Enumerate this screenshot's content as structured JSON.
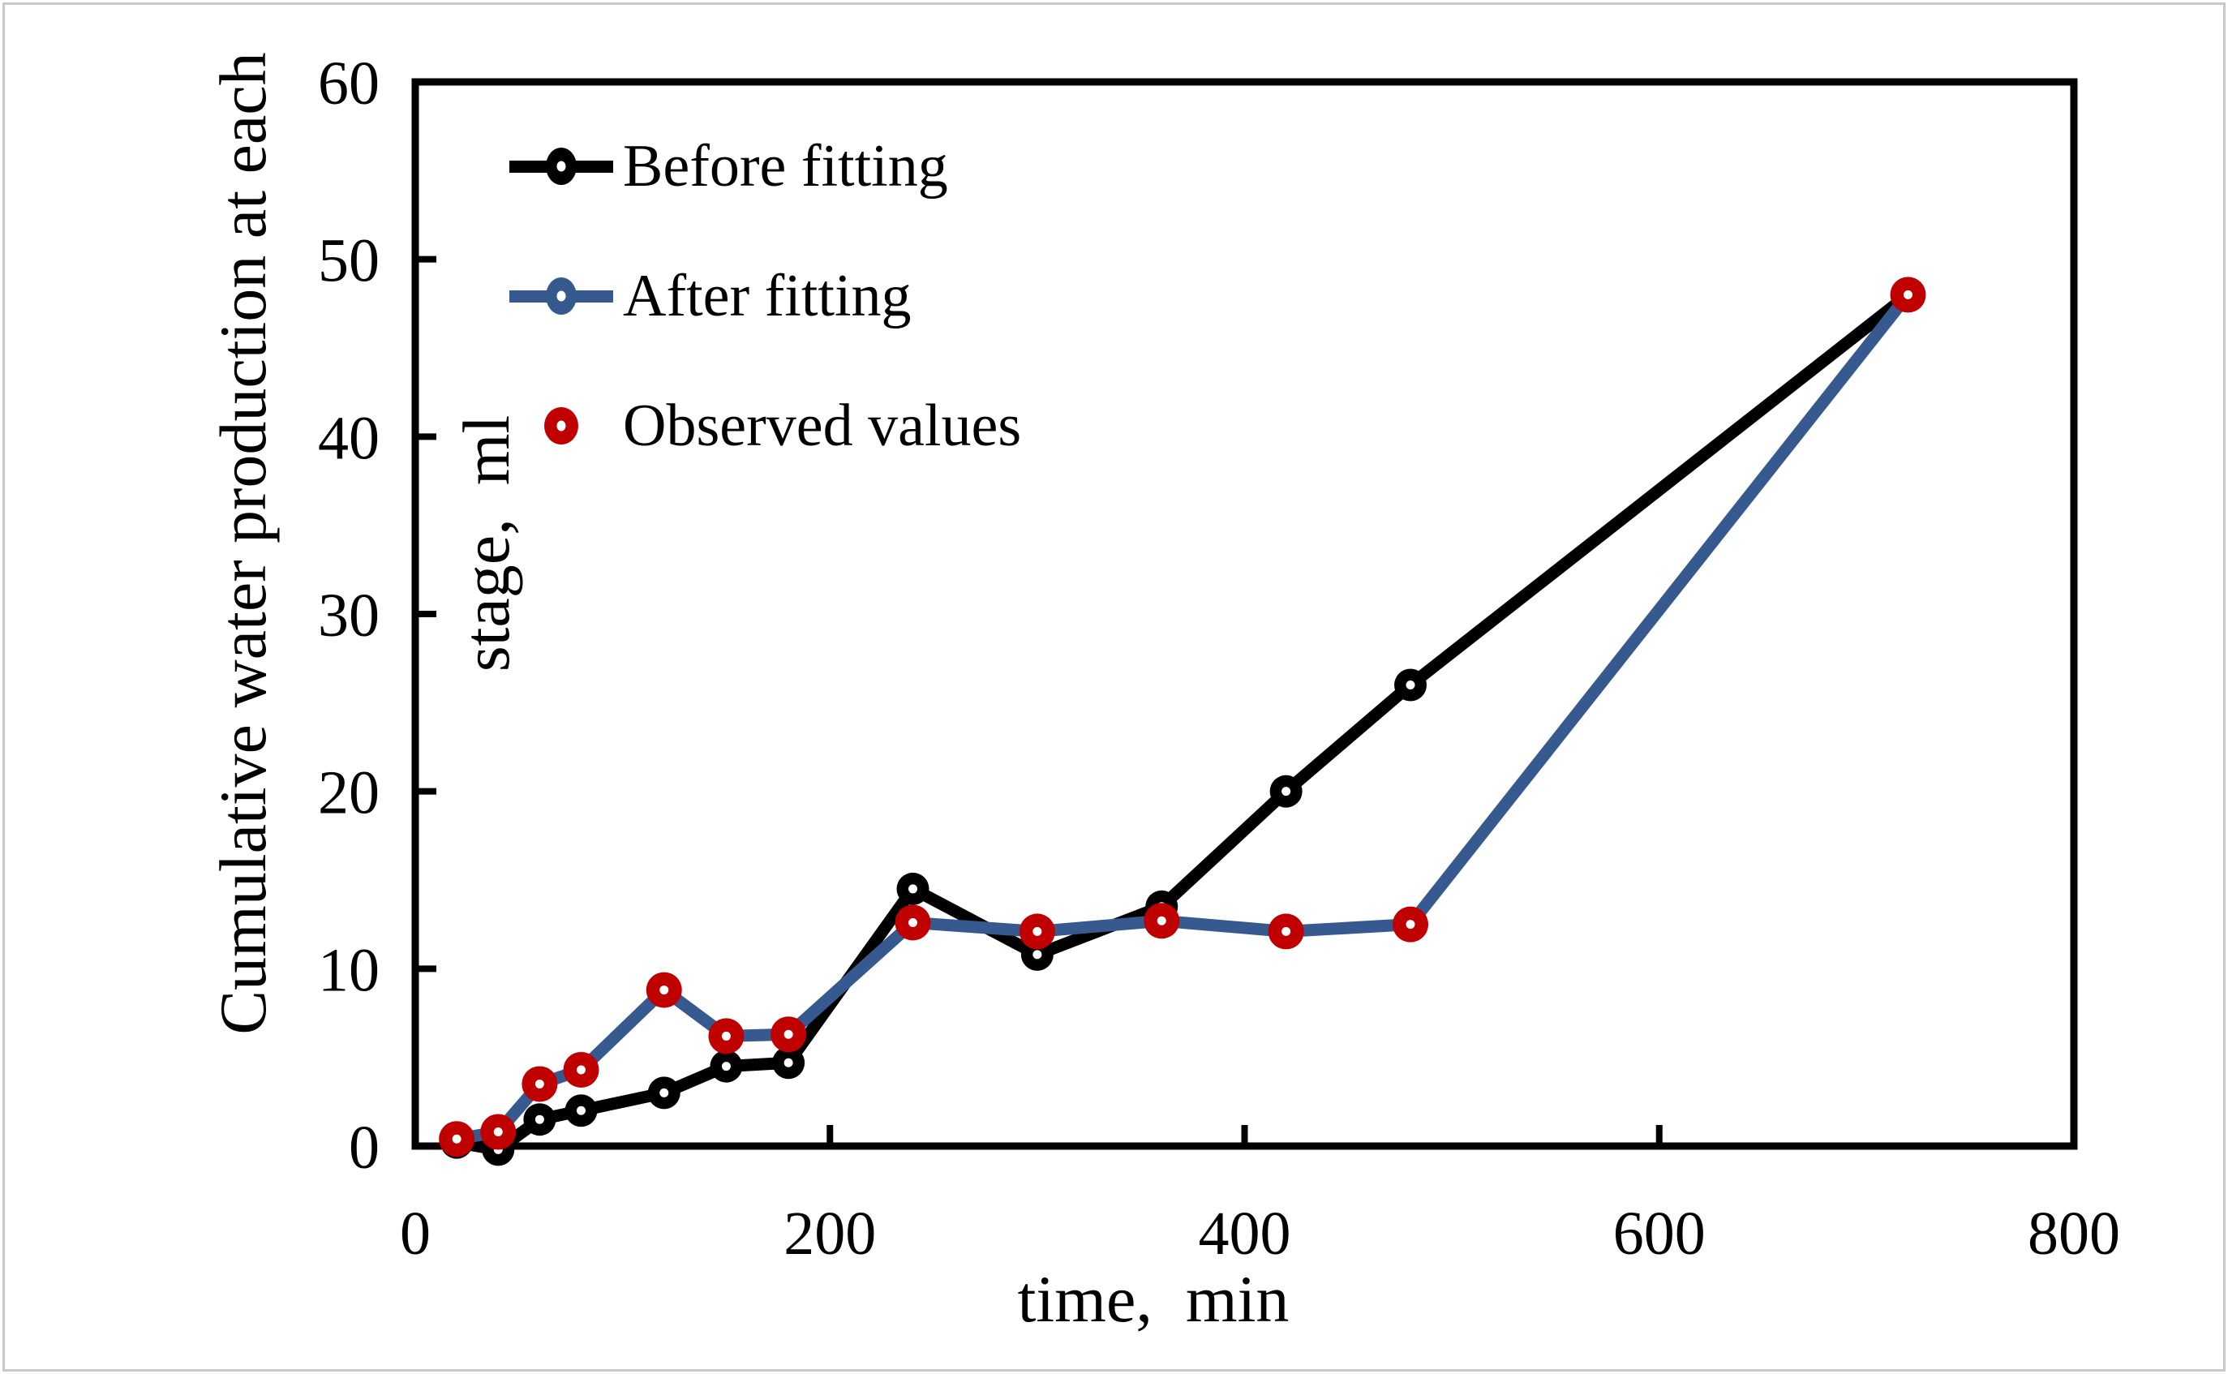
{
  "figure": {
    "background": "#ffffff",
    "outer_border_color": "#c9c9c9"
  },
  "chart_data": {
    "type": "line",
    "title": "",
    "xlabel": "time,  min",
    "ylabel": "Cumulative water production at each stage,  ml",
    "ylabel_lines": [
      "Cumulative water production at each",
      "stage,  ml"
    ],
    "xlim": [
      0,
      800
    ],
    "ylim": [
      0,
      60
    ],
    "x_ticks": [
      0,
      200,
      400,
      600,
      800
    ],
    "y_ticks": [
      0,
      10,
      20,
      30,
      40,
      50,
      60
    ],
    "grid": false,
    "legend_position": "upper-left-inside",
    "x": [
      20,
      40,
      60,
      80,
      120,
      150,
      180,
      240,
      300,
      360,
      420,
      480,
      720
    ],
    "series": [
      {
        "name": "Before fitting",
        "color": "#000000",
        "has_line": true,
        "marker": "circle-with-white-center",
        "values": [
          0.2,
          -0.2,
          1.5,
          2.0,
          3.0,
          4.5,
          4.7,
          14.5,
          10.8,
          13.5,
          20.0,
          26.0,
          48.0
        ]
      },
      {
        "name": "After fitting",
        "color": "#36598F",
        "has_line": true,
        "marker": "circle-with-white-center",
        "values": [
          0.4,
          0.8,
          3.5,
          4.3,
          8.8,
          6.2,
          6.3,
          12.6,
          12.1,
          12.7,
          12.1,
          12.5,
          48.0
        ]
      },
      {
        "name": "Observed values",
        "color": "#C00000",
        "has_line": false,
        "marker": "circle-with-white-center",
        "values": [
          0.4,
          0.8,
          3.5,
          4.3,
          8.8,
          6.2,
          6.3,
          12.6,
          12.1,
          12.7,
          12.1,
          12.5,
          48.0
        ]
      }
    ]
  }
}
